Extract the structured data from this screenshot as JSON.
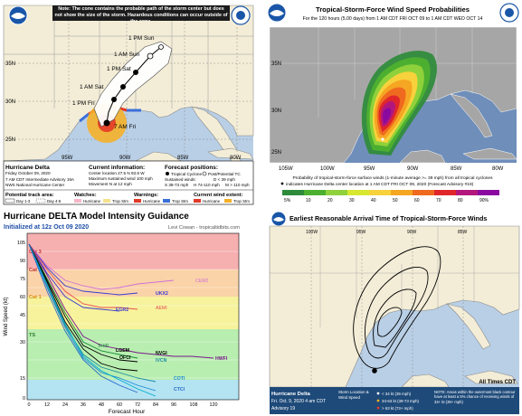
{
  "cone": {
    "note": "Note: The cone contains the probable path of the storm center but does not show the size of the storm. Hazardous conditions can occur outside of the cone.",
    "lat_labels": [
      "35N",
      "30N",
      "25N"
    ],
    "lon_labels": [
      "95W",
      "90W",
      "85W",
      "80W"
    ],
    "points": [
      "1 PM Sun",
      "1 AM Sun",
      "1 PM Sat",
      "1 AM Sat",
      "1 PM Fri",
      "7 AM Fri"
    ],
    "storm_name": "Hurricane Delta",
    "storm_date": "Friday October 09, 2020",
    "storm_advisory": "7 AM CDT Intermediate Advisory 19A",
    "storm_center": "NWS National Hurricane Center",
    "info_title": "Current information:",
    "info_lines": [
      "Center location 27.5 N 93.8 W",
      "Maximum sustained wind 100 mph",
      "Movement N at 12 mph"
    ],
    "forecast_title": "Forecast positions:",
    "forecast_lines": [
      "Tropical Cyclone",
      "Post/Potential TC",
      "Sustained winds:",
      "D < 39 mph",
      "S 39-73 mph",
      "H 74-110 mph",
      "M > 110 mph"
    ],
    "track_title": "Potential track area:",
    "track_items": [
      "Day 1-3",
      "Day 4-5"
    ],
    "watches_title": "Watches:",
    "watches_items": [
      "Hurricane",
      "Trop Stm"
    ],
    "warnings_title": "Warnings:",
    "warnings_items": [
      "Hurricane",
      "Trop Stm"
    ],
    "extent_title": "Current wind extent:",
    "extent_items": [
      "Hurricane",
      "Trop Stm"
    ]
  },
  "probabilities": {
    "title": "Tropical-Storm-Force Wind Speed Probabilities",
    "subtitle": "For the 120 hours (5.00 days) from 1 AM CDT FRI OCT 09 to 1 AM CDT WED OCT 14",
    "lat_labels": [
      "35N",
      "30N",
      "25N"
    ],
    "lon_labels": [
      "105W",
      "100W",
      "95W",
      "90W",
      "85W",
      "80W"
    ],
    "footer_line1": "Probability of tropical-storm-force surface winds (1-minute average >= 39 mph) from all tropical cyclones",
    "footer_line2": "indicates Hurricane Delta center location at 1 AM CDT FRI OCT 09, 2020 (Forecast Advisory #19)",
    "scale_labels": [
      "5%",
      "10",
      "20",
      "30",
      "40",
      "50",
      "60",
      "70",
      "80",
      "90%"
    ],
    "scale_colors": [
      "#2e8b3a",
      "#4caf30",
      "#8fd13a",
      "#d8e830",
      "#f7d23c",
      "#f5a623",
      "#ef6a1e",
      "#e0262a",
      "#b2187c",
      "#8a0aa0"
    ]
  },
  "model": {
    "title": "Hurricane DELTA Model Intensity Guidance",
    "subtitle": "Initialized at 12z Oct 09 2020",
    "credit": "Levi Cowan - tropicaltidbits.com",
    "ylabel": "Wind Speed (kt)",
    "xlabel": "Forecast Hour",
    "band_labels": [
      "Cat 3",
      "Cat 2",
      "Cat 1",
      "TS"
    ],
    "model_labels": [
      "CEM2",
      "UKX2",
      "EGR2",
      "AEMI",
      "HWFI",
      "SHIP",
      "LGEM",
      "OFCI",
      "NVGI",
      "IVCN",
      "COTI",
      "CTCI"
    ]
  },
  "arrival": {
    "title": "Earliest Reasonable Arrival Time of Tropical-Storm-Force Winds",
    "lon_labels": [
      "100W",
      "95W",
      "90W",
      "85W"
    ],
    "map_note": "All Times CDT",
    "storm_name": "Hurricane Delta",
    "storm_date": "Fri. Oct. 9, 2020  4 am CDT",
    "storm_advisory": "Advisory 19",
    "legend_title": "Storm Location & Wind Speed",
    "legend_items": [
      "< 34 kt (39 mph)",
      "34-63 kt (39-73 mph)",
      "> 63 kt (73+ mph)"
    ],
    "note": "NOTE: Areas within the outermost black contour have at least a 5% chance of receiving winds of 34+ kt (39+ mph)"
  },
  "colors": {
    "land": "#f3edd8",
    "water": "#b9cfe6",
    "water_dark": "#6f8fba",
    "cone_white": "#ffffff",
    "hurricane_red": "#e23a28",
    "tropical_orange": "#f5b028"
  }
}
